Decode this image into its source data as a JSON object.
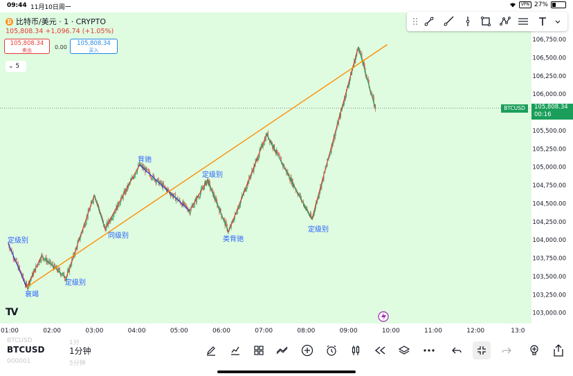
{
  "status_bar": {
    "time": "09:44",
    "date": "11月10日周一",
    "vpn": "VPN",
    "battery": "27%"
  },
  "header": {
    "symbol_title": "比特币/美元 · 1 · CRYPTO",
    "coin_icon": "bitcoin-icon",
    "price_change": "105,808.34 +1,096.74 (+1.05%)",
    "sell_price": "105,808.34",
    "sell_label": "卖出",
    "spread": "0.00",
    "buy_price": "105,808.34",
    "buy_label": "买入",
    "indicators_count": "5"
  },
  "drawing_toolbar": {
    "icons": [
      "grip-icon",
      "trend-line-icon",
      "ray-line-icon",
      "vertical-line-icon",
      "rectangle-icon",
      "pattern-icon",
      "fib-retracement-icon",
      "text-tool-icon",
      "more-chevron-icon"
    ]
  },
  "price_axis": {
    "ticks": [
      "106,750.00",
      "106,500.00",
      "106,250.00",
      "106,000.00",
      "105,750.00",
      "105,500.00",
      "105,250.00",
      "105,000.00",
      "104,750.00",
      "104,500.00",
      "104,250.00",
      "104,000.00",
      "103,750.00",
      "103,500.00",
      "103,250.00",
      "103,000.00"
    ],
    "current_symbol": "BTCUSD",
    "current_price": "105,808.34",
    "countdown": "00:16"
  },
  "time_axis": {
    "ticks": [
      "01:00",
      "02:00",
      "03:00",
      "04:00",
      "05:00",
      "06:00",
      "07:00",
      "08:00",
      "09:00",
      "10:00",
      "11:00",
      "12:00",
      "13:0"
    ]
  },
  "annotations": [
    {
      "text": "定级别",
      "color": "#2962ff"
    },
    {
      "text": "衰竭",
      "color": "#2962ff"
    },
    {
      "text": "定级别",
      "color": "#2962ff"
    },
    {
      "text": "同级别",
      "color": "#2962ff"
    },
    {
      "text": "背驰",
      "color": "#2962ff"
    },
    {
      "text": "定级别",
      "color": "#2962ff"
    },
    {
      "text": "类背驰",
      "color": "#2962ff"
    },
    {
      "text": "定级别",
      "color": "#2962ff"
    }
  ],
  "colors": {
    "chart_bg": "#dffbe0",
    "up": "#1b9e5a",
    "down": "#e53935",
    "trend_line": "#ff8c00",
    "down_stroke": "#1e3fd8"
  },
  "chart_data": {
    "type": "candlestick",
    "x_unit": "time",
    "price_unit": "USD",
    "zigzag_points": [
      {
        "t": "00:58",
        "p": 103950
      },
      {
        "t": "01:24",
        "p": 103350
      },
      {
        "t": "01:45",
        "p": 103780
      },
      {
        "t": "02:20",
        "p": 103480
      },
      {
        "t": "03:00",
        "p": 104620
      },
      {
        "t": "03:15",
        "p": 104150
      },
      {
        "t": "04:04",
        "p": 105030
      },
      {
        "t": "05:15",
        "p": 104400
      },
      {
        "t": "05:40",
        "p": 104820
      },
      {
        "t": "06:10",
        "p": 104110
      },
      {
        "t": "07:04",
        "p": 105450
      },
      {
        "t": "08:08",
        "p": 104280
      },
      {
        "t": "09:14",
        "p": 106650
      },
      {
        "t": "09:38",
        "p": 105800
      }
    ],
    "trend_line": {
      "from": {
        "t": "01:24",
        "p": 103350
      },
      "to": {
        "t": "09:55",
        "p": 106680
      }
    },
    "price_axis_range": [
      102900,
      106850
    ]
  },
  "bottom": {
    "ghost_top_symbol": "BTCUSD",
    "ghost_top_interval": "1分",
    "symbol": "BTCUSD",
    "interval": "1分钟",
    "ghost_bottom_symbol": "000001",
    "ghost_bottom_interval": "5分钟",
    "toolbar": [
      "pen-icon",
      "indicators-icon",
      "layout-icon",
      "compare-icon",
      "add-icon",
      "alarm-icon",
      "candle-type-icon",
      "replay-icon",
      "layers-icon",
      "more-icon",
      "undo-icon",
      "fullscreen-exit-icon",
      "redo-icon",
      "idea-icon",
      "share-icon"
    ]
  }
}
